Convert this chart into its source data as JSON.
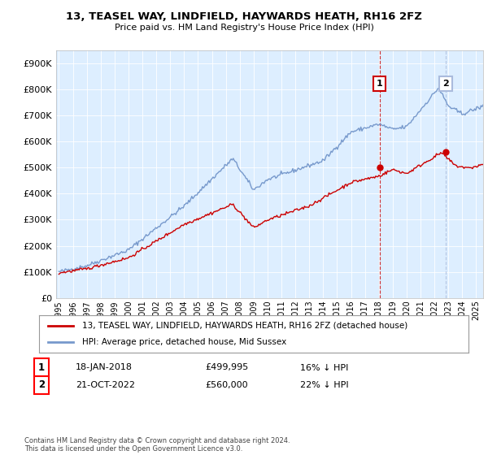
{
  "title": "13, TEASEL WAY, LINDFIELD, HAYWARDS HEATH, RH16 2FZ",
  "subtitle": "Price paid vs. HM Land Registry's House Price Index (HPI)",
  "legend_line1": "13, TEASEL WAY, LINDFIELD, HAYWARDS HEATH, RH16 2FZ (detached house)",
  "legend_line2": "HPI: Average price, detached house, Mid Sussex",
  "footnote": "Contains HM Land Registry data © Crown copyright and database right 2024.\nThis data is licensed under the Open Government Licence v3.0.",
  "sale1_label": "1",
  "sale1_date": "18-JAN-2018",
  "sale1_price": "£499,995",
  "sale1_hpi": "16% ↓ HPI",
  "sale2_label": "2",
  "sale2_date": "21-OCT-2022",
  "sale2_price": "£560,000",
  "sale2_hpi": "22% ↓ HPI",
  "red_color": "#cc0000",
  "blue_color": "#7799cc",
  "background_color": "#ddeeff",
  "ylim": [
    0,
    950000
  ],
  "xlim_start": 1994.8,
  "xlim_end": 2025.5,
  "sale1_year": 2018.05,
  "sale1_price_val": 499995,
  "sale2_year": 2022.8,
  "sale2_price_val": 560000
}
